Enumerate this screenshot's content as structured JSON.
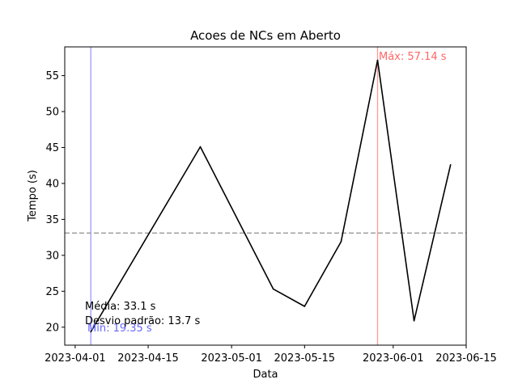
{
  "chart_data": {
    "type": "line",
    "title": "Acoes de NCs em Aberto",
    "xlabel": "Data",
    "ylabel": "Tempo (s)",
    "series": [
      {
        "name": "Tempo",
        "color": "#000000",
        "x": [
          "2023-04-04",
          "2023-04-25",
          "2023-05-09",
          "2023-05-15",
          "2023-05-22",
          "2023-05-29",
          "2023-06-05",
          "2023-06-12"
        ],
        "values": [
          19.35,
          45.1,
          25.3,
          22.9,
          31.9,
          57.14,
          20.9,
          42.6
        ]
      }
    ],
    "x_range": [
      "2023-03-30",
      "2023-06-15"
    ],
    "ylim": [
      17.5,
      59.0
    ],
    "y_ticks": [
      20,
      25,
      30,
      35,
      40,
      45,
      50,
      55
    ],
    "x_ticks": [
      "2023-04-01",
      "2023-04-15",
      "2023-05-01",
      "2023-05-15",
      "2023-06-01",
      "2023-06-15"
    ],
    "mean_line": {
      "value": 33.1,
      "color": "#999999"
    },
    "min_line": {
      "date": "2023-04-04",
      "color": "#9999ff"
    },
    "max_line": {
      "date": "2023-05-29",
      "color": "#ff9999"
    },
    "annotations": {
      "max_label": "Máx: 57.14 s",
      "min_label": "Mín: 19.35 s",
      "mean_label": "Média: 33.1 s",
      "std_label": "Desvio padrão: 13.7 s",
      "max_color": "#ff6666",
      "min_color": "#6666ff"
    }
  }
}
